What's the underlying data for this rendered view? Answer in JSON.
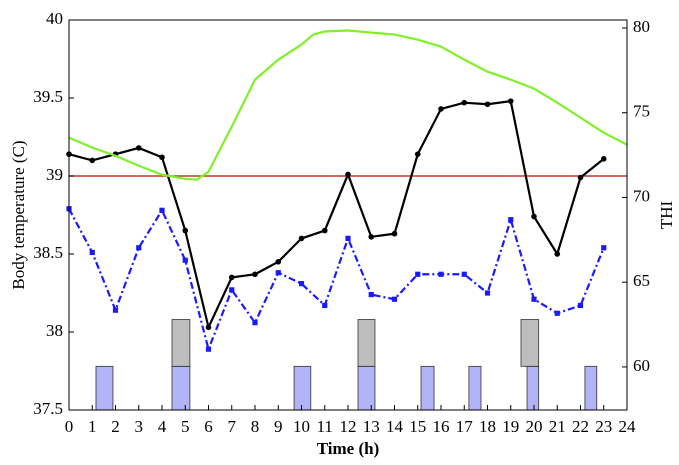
{
  "chart_data": {
    "type": "line",
    "xlabel": "Time (h)",
    "ylabel": "Body temperature (C)",
    "y2label": "THI",
    "xlim": [
      0,
      24
    ],
    "ylim": [
      37.5,
      40
    ],
    "y2lim": [
      57.46,
      80.47
    ],
    "xticks": [
      0,
      1,
      2,
      3,
      4,
      5,
      6,
      7,
      8,
      9,
      10,
      11,
      12,
      13,
      14,
      15,
      16,
      17,
      18,
      19,
      20,
      21,
      22,
      23,
      24
    ],
    "yticks": [
      37.5,
      38,
      38.5,
      39,
      39.5,
      40
    ],
    "y2ticks": [
      60,
      65,
      70,
      75,
      80
    ],
    "reference_line": {
      "value": 39,
      "color": "#c0392b"
    },
    "series": [
      {
        "color": "#000000",
        "marker": "circle",
        "dash": "solid",
        "x": [
          0,
          1,
          2,
          3,
          4,
          5,
          6,
          7,
          8,
          9,
          10,
          11,
          12,
          13,
          14,
          15,
          16,
          17,
          18,
          19,
          20,
          21,
          22,
          23
        ],
        "values": [
          39.14,
          39.1,
          39.14,
          39.18,
          39.12,
          38.65,
          38.03,
          38.35,
          38.37,
          38.45,
          38.6,
          38.65,
          39.01,
          38.61,
          38.63,
          39.14,
          39.43,
          39.47,
          39.46,
          39.48,
          38.74,
          38.5,
          38.99,
          39.11
        ]
      },
      {
        "color": "#1a1aff",
        "marker": "square",
        "dash": "dashdot",
        "x": [
          0,
          1,
          2,
          3,
          4,
          5,
          6,
          7,
          8,
          9,
          10,
          11,
          12,
          13,
          14,
          15,
          16,
          17,
          18,
          19,
          20,
          21,
          22,
          23
        ],
        "values": [
          38.79,
          38.51,
          38.14,
          38.54,
          38.78,
          38.46,
          37.89,
          38.27,
          38.06,
          38.38,
          38.31,
          38.17,
          38.6,
          38.24,
          38.21,
          38.37,
          38.37,
          38.37,
          38.25,
          38.72,
          38.21,
          38.12,
          38.17,
          38.54
        ]
      },
      {
        "color": "#7ff02a",
        "marker": "none",
        "dash": "solid",
        "axis": "y2",
        "x": [
          0,
          1,
          2,
          3,
          4,
          5,
          5.5,
          6,
          7,
          8,
          9,
          10,
          10.5,
          11,
          12,
          13,
          14,
          15,
          16,
          17,
          18,
          19,
          20,
          21,
          22,
          23,
          24
        ],
        "values": [
          73.53,
          72.94,
          72.46,
          71.87,
          71.34,
          71.1,
          71.05,
          71.52,
          74.18,
          76.95,
          78.13,
          79.02,
          79.61,
          79.79,
          79.85,
          79.73,
          79.61,
          79.31,
          78.9,
          78.13,
          77.42,
          76.95,
          76.42,
          75.59,
          74.71,
          73.82,
          73.11
        ]
      }
    ],
    "bars": [
      {
        "color": "#b3b3f7",
        "bottom": 37.5,
        "top": 37.78,
        "intervals": [
          [
            1.16,
            1.89
          ],
          [
            4.43,
            5.2
          ],
          [
            9.68,
            10.4
          ],
          [
            12.43,
            13.16
          ],
          [
            15.14,
            15.7
          ],
          [
            17.2,
            17.72
          ],
          [
            19.7,
            20.2
          ],
          [
            22.19,
            22.7
          ]
        ]
      },
      {
        "color": "#bdbdbd",
        "bottom": 37.78,
        "top": 38.08,
        "intervals": [
          [
            4.43,
            5.2
          ],
          [
            12.43,
            13.16
          ],
          [
            19.44,
            20.2
          ]
        ]
      }
    ]
  }
}
